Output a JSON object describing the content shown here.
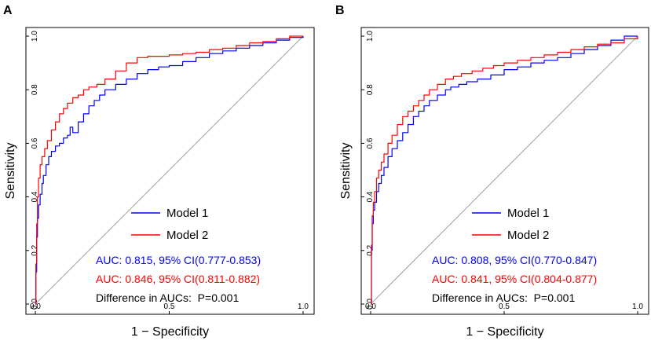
{
  "chart_data": [
    {
      "type": "line",
      "panel": "A",
      "title": "",
      "xlabel": "1 − Specificity",
      "ylabel": "Sensitivity",
      "xlim": [
        0,
        1
      ],
      "ylim": [
        0,
        1
      ],
      "xticks": [
        "0.0",
        "0.5",
        "1.0"
      ],
      "yticks": [
        "0.0",
        "0.2",
        "0.4",
        "0.6",
        "0.8",
        "1.0"
      ],
      "legend": [
        "Model 1",
        "Model 2"
      ],
      "auc_lines": [
        "AUC: 0.815, 95% CI(0.777-0.853)",
        "AUC: 0.846, 95% CI(0.811-0.882)"
      ],
      "difference": "Difference in AUCs:  P=0.001",
      "series": [
        {
          "name": "Model 1",
          "color": "#0000ff",
          "x": [
            0,
            0.002,
            0.005,
            0.008,
            0.012,
            0.018,
            0.025,
            0.03,
            0.04,
            0.05,
            0.06,
            0.075,
            0.09,
            0.105,
            0.12,
            0.13,
            0.14,
            0.16,
            0.18,
            0.2,
            0.22,
            0.24,
            0.26,
            0.3,
            0.34,
            0.38,
            0.42,
            0.46,
            0.5,
            0.55,
            0.6,
            0.65,
            0.7,
            0.75,
            0.8,
            0.85,
            0.9,
            0.95,
            1.0
          ],
          "y": [
            0,
            0.12,
            0.25,
            0.32,
            0.37,
            0.41,
            0.45,
            0.48,
            0.52,
            0.55,
            0.57,
            0.59,
            0.6,
            0.62,
            0.63,
            0.66,
            0.64,
            0.68,
            0.71,
            0.74,
            0.76,
            0.78,
            0.8,
            0.82,
            0.84,
            0.86,
            0.875,
            0.885,
            0.89,
            0.905,
            0.92,
            0.935,
            0.945,
            0.955,
            0.965,
            0.975,
            0.985,
            0.995,
            1.0
          ]
        },
        {
          "name": "Model 2",
          "color": "#ff0000",
          "x": [
            0,
            0.002,
            0.005,
            0.008,
            0.012,
            0.018,
            0.025,
            0.035,
            0.045,
            0.06,
            0.075,
            0.09,
            0.105,
            0.12,
            0.14,
            0.16,
            0.18,
            0.2,
            0.23,
            0.26,
            0.3,
            0.34,
            0.38,
            0.42,
            0.46,
            0.5,
            0.55,
            0.6,
            0.65,
            0.7,
            0.75,
            0.8,
            0.85,
            0.9,
            0.95,
            1.0
          ],
          "y": [
            0,
            0.15,
            0.3,
            0.4,
            0.47,
            0.52,
            0.55,
            0.58,
            0.61,
            0.65,
            0.68,
            0.71,
            0.73,
            0.75,
            0.77,
            0.78,
            0.8,
            0.81,
            0.82,
            0.84,
            0.87,
            0.9,
            0.92,
            0.925,
            0.925,
            0.93,
            0.935,
            0.94,
            0.95,
            0.955,
            0.965,
            0.975,
            0.98,
            0.99,
            1.0,
            1.0
          ]
        }
      ]
    },
    {
      "type": "line",
      "panel": "B",
      "title": "",
      "xlabel": "1 − Specificity",
      "ylabel": "Sensitivity",
      "xlim": [
        0,
        1
      ],
      "ylim": [
        0,
        1
      ],
      "xticks": [
        "0.0",
        "0.5",
        "1.0"
      ],
      "yticks": [
        "0.0",
        "0.2",
        "0.4",
        "0.6",
        "0.8",
        "1.0"
      ],
      "legend": [
        "Model 1",
        "Model 2"
      ],
      "auc_lines": [
        "AUC: 0.808, 95% CI(0.770-0.847)",
        "AUC: 0.841, 95% CI(0.804-0.877)"
      ],
      "difference": "Difference in AUCs:  P=0.001",
      "series": [
        {
          "name": "Model 1",
          "color": "#0000ff",
          "x": [
            0,
            0.003,
            0.006,
            0.01,
            0.015,
            0.022,
            0.03,
            0.04,
            0.05,
            0.065,
            0.08,
            0.1,
            0.12,
            0.14,
            0.16,
            0.18,
            0.2,
            0.22,
            0.25,
            0.28,
            0.3,
            0.33,
            0.36,
            0.4,
            0.45,
            0.5,
            0.55,
            0.6,
            0.65,
            0.7,
            0.75,
            0.8,
            0.85,
            0.9,
            0.95,
            1.0
          ],
          "y": [
            0,
            0.2,
            0.3,
            0.35,
            0.38,
            0.42,
            0.45,
            0.48,
            0.51,
            0.55,
            0.58,
            0.61,
            0.64,
            0.67,
            0.7,
            0.72,
            0.74,
            0.76,
            0.78,
            0.8,
            0.81,
            0.82,
            0.83,
            0.84,
            0.855,
            0.875,
            0.885,
            0.9,
            0.91,
            0.92,
            0.935,
            0.95,
            0.965,
            0.985,
            1.0,
            1.0
          ]
        },
        {
          "name": "Model 2",
          "color": "#ff0000",
          "x": [
            0,
            0.003,
            0.006,
            0.01,
            0.015,
            0.022,
            0.03,
            0.04,
            0.05,
            0.065,
            0.08,
            0.1,
            0.12,
            0.14,
            0.16,
            0.18,
            0.2,
            0.22,
            0.25,
            0.28,
            0.31,
            0.34,
            0.38,
            0.42,
            0.46,
            0.5,
            0.55,
            0.6,
            0.65,
            0.7,
            0.75,
            0.8,
            0.85,
            0.9,
            0.95,
            1.0
          ],
          "y": [
            0,
            0.22,
            0.33,
            0.38,
            0.42,
            0.47,
            0.5,
            0.53,
            0.56,
            0.6,
            0.63,
            0.67,
            0.7,
            0.72,
            0.74,
            0.76,
            0.78,
            0.8,
            0.82,
            0.84,
            0.85,
            0.86,
            0.87,
            0.88,
            0.89,
            0.9,
            0.91,
            0.92,
            0.93,
            0.94,
            0.95,
            0.96,
            0.97,
            0.975,
            0.99,
            1.0
          ]
        }
      ]
    }
  ]
}
